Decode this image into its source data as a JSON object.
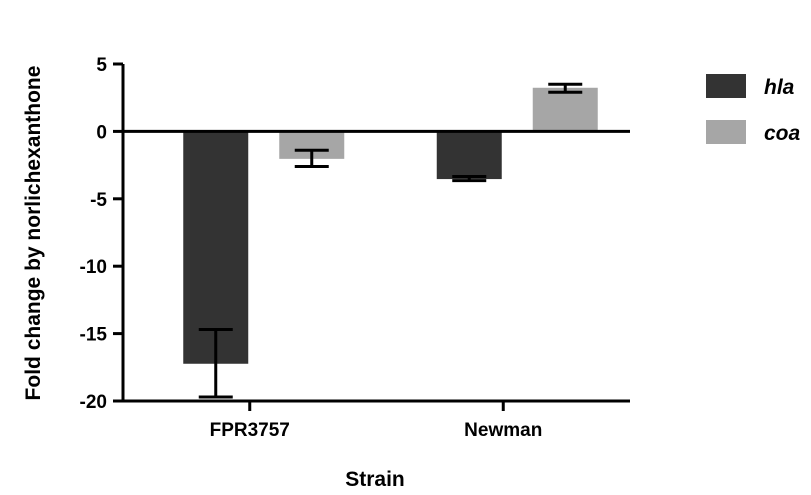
{
  "chart_data": {
    "type": "bar",
    "title": "",
    "xlabel": "Strain",
    "ylabel": "Fold change by norlichexanthone",
    "categories": [
      "FPR3757",
      "Newman"
    ],
    "series": [
      {
        "name": "hla",
        "color": "#333333",
        "values": [
          -17.2,
          -3.5
        ],
        "errors": [
          2.5,
          0.15
        ]
      },
      {
        "name": "coa",
        "color": "#a6a6a6",
        "values": [
          -2.0,
          3.2
        ],
        "errors": [
          0.6,
          0.3
        ]
      }
    ],
    "ylim": [
      -20,
      5
    ],
    "yticks": [
      5,
      0,
      -5,
      -10,
      -15,
      -20
    ],
    "ytick_labels": [
      "5",
      "0",
      "-5",
      "-10",
      "-15",
      "-20"
    ],
    "grid": false,
    "legend_position": "right"
  }
}
